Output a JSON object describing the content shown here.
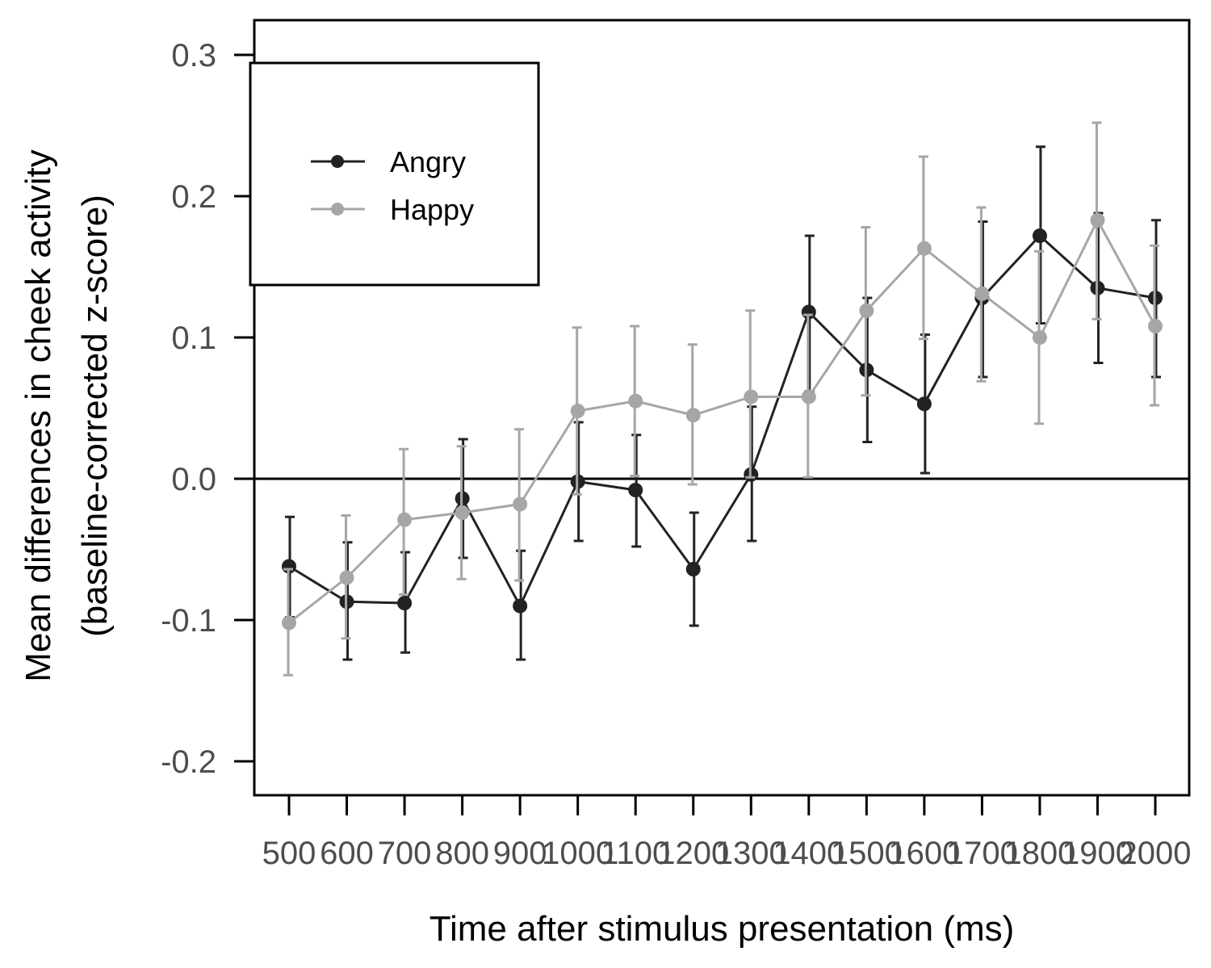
{
  "chart_data": {
    "type": "line",
    "title": "",
    "xlabel": "Time after stimulus presentation (ms)",
    "ylabel_line1": "Mean differences in cheek activity",
    "ylabel_line2": "(baseline-corrected z-score)",
    "categories": [
      "500",
      "600",
      "700",
      "800",
      "900",
      "1000",
      "1100",
      "1200",
      "1300",
      "1400",
      "1500",
      "1600",
      "1700",
      "1800",
      "1900",
      "2000"
    ],
    "ylim": [
      -0.225,
      0.325
    ],
    "yticks": [
      -0.2,
      -0.1,
      0.0,
      0.1,
      0.2,
      0.3
    ],
    "ytick_labels": [
      "-0.2",
      "-0.1",
      "0.0",
      "0.1",
      "0.2",
      "0.3"
    ],
    "reference_line": 0.0,
    "grid": false,
    "legend_position": "top-left",
    "series": [
      {
        "name": "Angry",
        "color": "#222222",
        "values": [
          -0.062,
          -0.087,
          -0.088,
          -0.014,
          -0.09,
          -0.002,
          -0.008,
          -0.064,
          0.003,
          0.118,
          0.077,
          0.053,
          0.128,
          0.172,
          0.135,
          0.128
        ],
        "error_low": [
          -0.098,
          -0.128,
          -0.123,
          -0.056,
          -0.128,
          -0.044,
          -0.048,
          -0.104,
          -0.044,
          0.062,
          0.026,
          0.004,
          0.072,
          0.11,
          0.082,
          0.072
        ],
        "error_high": [
          -0.027,
          -0.045,
          -0.052,
          0.028,
          -0.051,
          0.04,
          0.031,
          -0.024,
          0.051,
          0.172,
          0.128,
          0.102,
          0.182,
          0.235,
          0.188,
          0.183
        ]
      },
      {
        "name": "Happy",
        "color": "#a6a6a6",
        "values": [
          -0.102,
          -0.07,
          -0.029,
          -0.024,
          -0.018,
          0.048,
          0.055,
          0.045,
          0.058,
          0.058,
          0.119,
          0.163,
          0.131,
          0.1,
          0.183,
          0.108
        ],
        "error_low": [
          -0.139,
          -0.113,
          -0.082,
          -0.071,
          -0.072,
          -0.011,
          0.002,
          -0.004,
          0.001,
          0.001,
          0.059,
          0.099,
          0.069,
          0.039,
          0.113,
          0.052
        ],
        "error_high": [
          -0.064,
          -0.026,
          0.021,
          0.023,
          0.035,
          0.107,
          0.108,
          0.095,
          0.119,
          0.116,
          0.178,
          0.228,
          0.192,
          0.161,
          0.252,
          0.165
        ]
      }
    ]
  }
}
